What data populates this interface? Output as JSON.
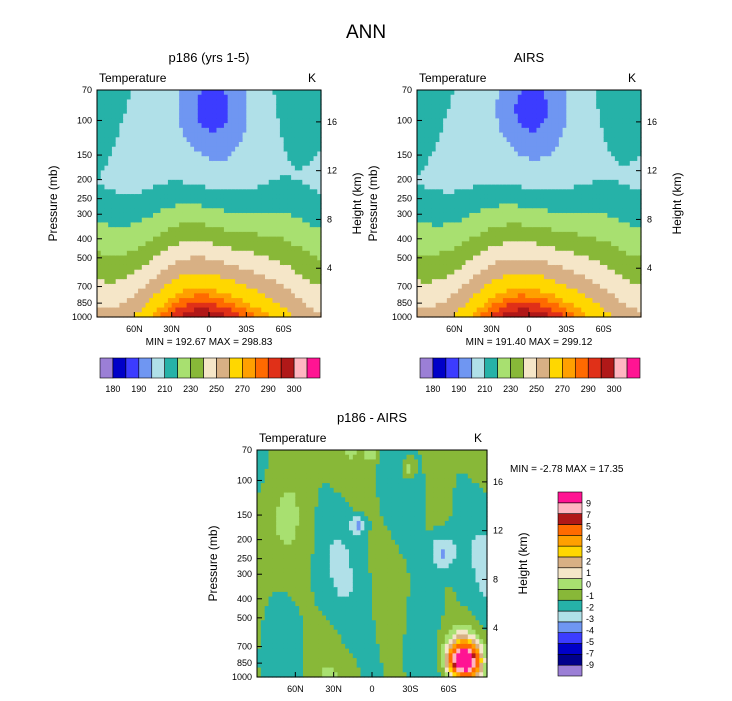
{
  "title": "ANN",
  "colors": {
    "abs": [
      "#9b7fd6",
      "#0000c8",
      "#3c3cff",
      "#6f96f2",
      "#b0e0e8",
      "#26b2a8",
      "#a8e070",
      "#88b838",
      "#f5e6c8",
      "#d8b084",
      "#ffd700",
      "#ffa000",
      "#ff6a00",
      "#e03018",
      "#b01818",
      "#ffb6c1",
      "#ff1493"
    ],
    "diff": [
      "#9b7fd6",
      "#00008b",
      "#0000c8",
      "#3c3cff",
      "#6f96f2",
      "#b0e0e8",
      "#26b2a8",
      "#88b838",
      "#a8e070",
      "#f5e6c8",
      "#d8b084",
      "#ffd700",
      "#ffa000",
      "#ff6a00",
      "#b01818",
      "#ffb6c1",
      "#ff1493"
    ]
  },
  "chart_data": [
    {
      "type": "contour",
      "title": "p186 (yrs 1-5)",
      "left_label": "Temperature",
      "right_label": "K",
      "ylabel": "Pressure (mb)",
      "ylabel_right": "Height (km)",
      "yticks": [
        "70",
        "100",
        "150",
        "200",
        "250",
        "300",
        "400",
        "500",
        "700",
        "850",
        "1000"
      ],
      "yticks_right": [
        "16",
        "12",
        "8",
        "4"
      ],
      "xticks": [
        "60N",
        "30N",
        "0",
        "30S",
        "60S"
      ],
      "x_range": [
        90,
        -90
      ],
      "stats": "MIN = 192.67  MAX = 298.83",
      "colorbar_labels": [
        "180",
        "190",
        "210",
        "230",
        "250",
        "270",
        "290",
        "300"
      ],
      "min": 192.67,
      "max": 298.83
    },
    {
      "type": "contour",
      "title": "AIRS",
      "left_label": "Temperature",
      "right_label": "K",
      "ylabel": "Pressure (mb)",
      "ylabel_right": "Height (km)",
      "yticks": [
        "70",
        "100",
        "150",
        "200",
        "250",
        "300",
        "400",
        "500",
        "700",
        "850",
        "1000"
      ],
      "yticks_right": [
        "16",
        "12",
        "8",
        "4"
      ],
      "xticks": [
        "60N",
        "30N",
        "0",
        "30S",
        "60S"
      ],
      "x_range": [
        90,
        -90
      ],
      "stats": "MIN = 191.40  MAX = 299.12",
      "colorbar_labels": [
        "180",
        "190",
        "210",
        "230",
        "250",
        "270",
        "290",
        "300"
      ],
      "min": 191.4,
      "max": 299.12
    },
    {
      "type": "contour",
      "title": "p186 - AIRS",
      "left_label": "Temperature",
      "right_label": "K",
      "ylabel": "Pressure (mb)",
      "ylabel_right": "Height (km)",
      "yticks": [
        "70",
        "100",
        "150",
        "200",
        "250",
        "300",
        "400",
        "500",
        "700",
        "850",
        "1000"
      ],
      "yticks_right": [
        "16",
        "12",
        "8",
        "4"
      ],
      "xticks": [
        "60N",
        "30N",
        "0",
        "30S",
        "60S"
      ],
      "x_range": [
        90,
        -90
      ],
      "stats": "MIN = -2.78  MAX = 17.35",
      "colorbar_labels": [
        "9",
        "7",
        "5",
        "4",
        "3",
        "2",
        "1",
        "0",
        "-1",
        "-2",
        "-3",
        "-4",
        "-5",
        "-7",
        "-9"
      ],
      "min": -2.78,
      "max": 17.35
    }
  ]
}
